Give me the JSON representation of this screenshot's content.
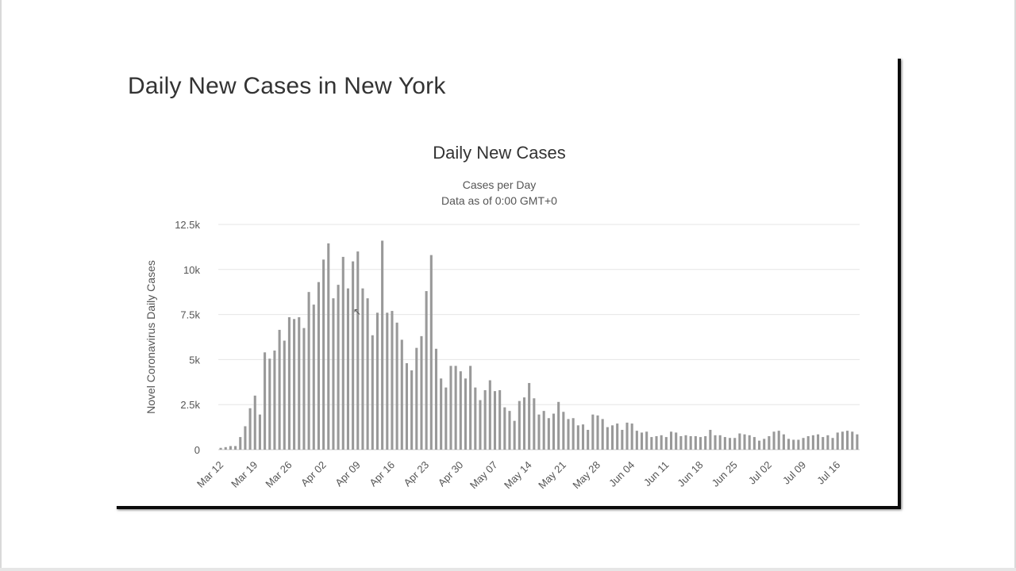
{
  "page": {
    "heading": "Daily New Cases in New York"
  },
  "chart_data": {
    "type": "bar",
    "title": "Daily New Cases",
    "subtitle_line1": "Cases per Day",
    "subtitle_line2": "Data as of 0:00 GMT+0",
    "ylabel": "Novel Coronavirus Daily Cases",
    "xlabel": "",
    "ylim": [
      0,
      12500
    ],
    "yticks": [
      0,
      2500,
      5000,
      7500,
      10000,
      12500
    ],
    "ytick_labels": [
      "0",
      "2.5k",
      "5k",
      "7.5k",
      "10k",
      "12.5k"
    ],
    "xtick_labels": [
      "Mar 12",
      "Mar 19",
      "Mar 26",
      "Apr 02",
      "Apr 09",
      "Apr 16",
      "Apr 23",
      "Apr 30",
      "May 07",
      "May 14",
      "May 21",
      "May 28",
      "Jun 04",
      "Jun 11",
      "Jun 18",
      "Jun 25",
      "Jul 02",
      "Jul 09",
      "Jul 16"
    ],
    "grid": true,
    "bar_color": "#999999",
    "series": [
      {
        "name": "Daily Cases",
        "values": [
          100,
          140,
          200,
          200,
          700,
          1300,
          2300,
          3000,
          1950,
          5400,
          5050,
          5500,
          6650,
          6050,
          7350,
          7250,
          7350,
          6750,
          8750,
          8050,
          9300,
          10550,
          11450,
          8400,
          9150,
          10700,
          8950,
          10450,
          11000,
          8950,
          8400,
          6350,
          7600,
          11600,
          7600,
          7700,
          7050,
          6100,
          4800,
          4400,
          5650,
          6300,
          8800,
          10800,
          5600,
          3950,
          3450,
          4650,
          4650,
          4350,
          3950,
          4650,
          3450,
          2750,
          3300,
          3850,
          3250,
          3300,
          2350,
          2150,
          1600,
          2700,
          2900,
          3700,
          2850,
          1950,
          2150,
          1750,
          2000,
          2650,
          2100,
          1700,
          1750,
          1350,
          1400,
          1100,
          1950,
          1900,
          1700,
          1250,
          1350,
          1450,
          1100,
          1500,
          1450,
          1050,
          950,
          1000,
          700,
          750,
          800,
          700,
          1000,
          950,
          750,
          800,
          750,
          750,
          700,
          750,
          1100,
          800,
          800,
          700,
          650,
          650,
          900,
          850,
          800,
          700,
          500,
          600,
          750,
          1000,
          1050,
          850,
          600,
          550,
          550,
          650,
          750,
          800,
          850,
          700,
          800,
          650,
          950,
          1000,
          1050,
          1000,
          850
        ]
      }
    ]
  }
}
